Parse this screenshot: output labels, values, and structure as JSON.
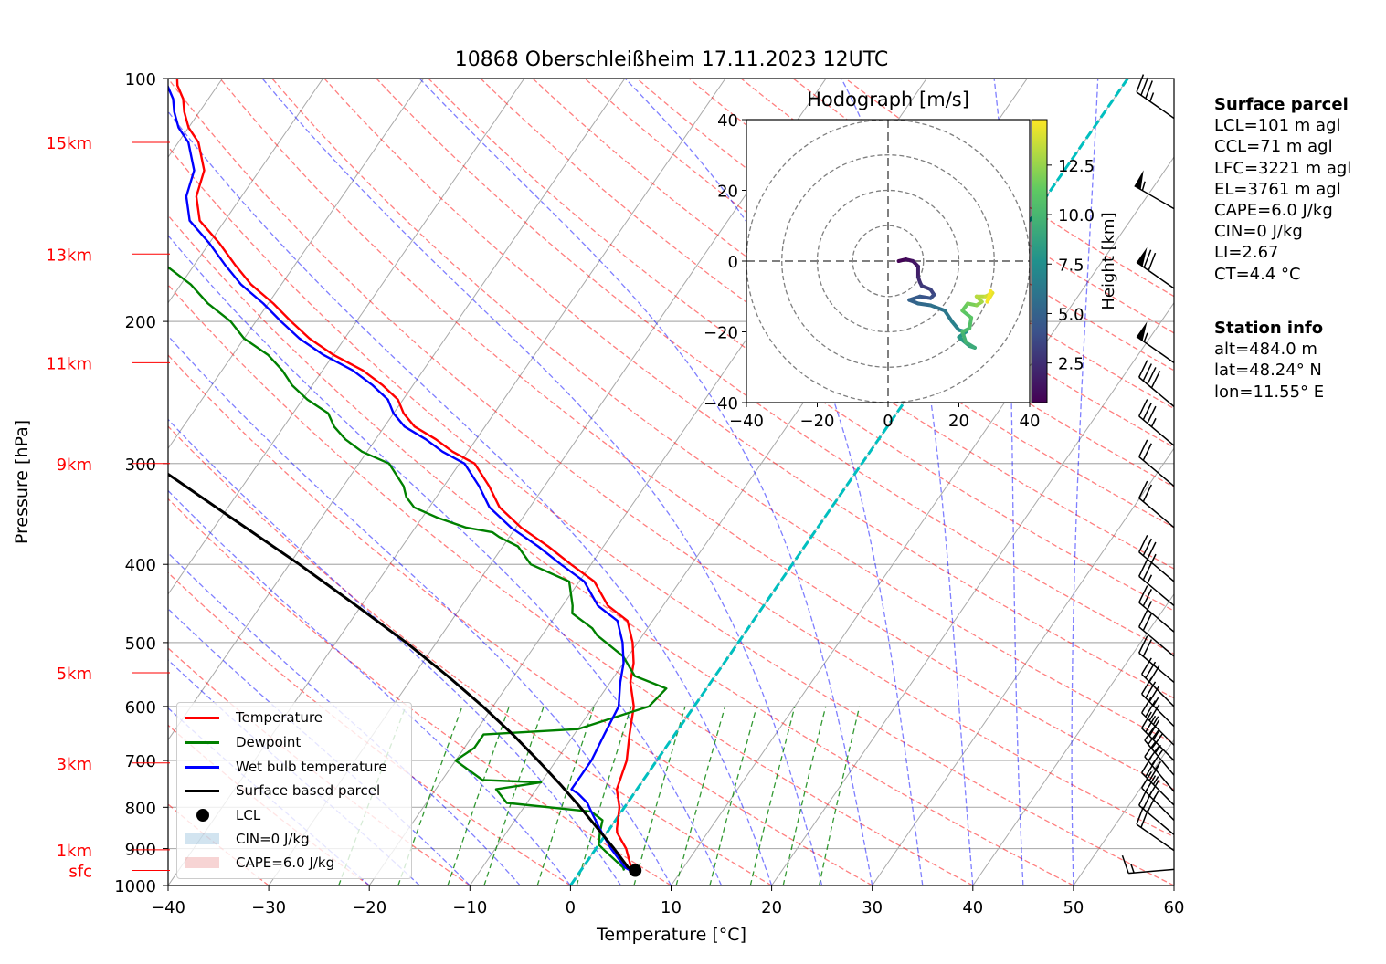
{
  "title": "10868 Oberschleißheim 17.11.2023 12UTC",
  "chart_data": [
    {
      "type": "line",
      "subtype": "skew-T log-p diagram",
      "title": "10868 Oberschleißheim 17.11.2023 12UTC",
      "xlabel": "Temperature [°C]",
      "ylabel": "Pressure [hPa]",
      "xlim": [
        -40,
        60
      ],
      "ylim": [
        1000,
        100
      ],
      "y_scale": "log",
      "grid": true,
      "x_ticks": [
        "−40",
        "−30",
        "−20",
        "−10",
        "0",
        "10",
        "20",
        "30",
        "40",
        "50",
        "60"
      ],
      "y_ticks": [
        "100",
        "200",
        "300",
        "400",
        "500",
        "600",
        "700",
        "800",
        "900",
        "1000"
      ],
      "height_labels": [
        {
          "label": "sfc",
          "pressure": 958
        },
        {
          "label": "1km",
          "pressure": 903
        },
        {
          "label": "3km",
          "pressure": 705
        },
        {
          "label": "5km",
          "pressure": 545
        },
        {
          "label": "9km",
          "pressure": 300
        },
        {
          "label": "11km",
          "pressure": 225
        },
        {
          "label": "13km",
          "pressure": 165
        },
        {
          "label": "15km",
          "pressure": 120
        }
      ],
      "legend_position": "bottom-left",
      "legend": [
        "Temperature",
        "Dewpoint",
        "Wet bulb temperature",
        "Surface based parcel",
        "LCL",
        "CIN=0 J/kg",
        "CAPE=6.0 J/kg"
      ],
      "colors": {
        "temperature": "#ff0000",
        "dewpoint": "#008000",
        "wetbulb": "#0000ff",
        "parcel": "#000000",
        "zero_isotherm": "#00bfbf",
        "dry_adiabats": "#ff0000",
        "moist_adiabats": "#0000ff",
        "mixing_ratio": "#008000"
      },
      "series": [
        {
          "name": "Temperature",
          "points": [
            [
              5.4,
              958
            ],
            [
              4.8,
              950
            ],
            [
              3.0,
              900
            ],
            [
              2.0,
              880
            ],
            [
              1.0,
              860
            ],
            [
              0.7,
              850
            ],
            [
              -0.5,
              800
            ],
            [
              -2.0,
              760
            ],
            [
              -3.0,
              700
            ],
            [
              -4.5,
              650
            ],
            [
              -6.0,
              600
            ],
            [
              -8.0,
              560
            ],
            [
              -9.0,
              530
            ],
            [
              -10.5,
              500
            ],
            [
              -12.5,
              470
            ],
            [
              -15.5,
              450
            ],
            [
              -18.5,
              420
            ],
            [
              -22.0,
              400
            ],
            [
              -25.5,
              380
            ],
            [
              -29.5,
              360
            ],
            [
              -33.0,
              340
            ],
            [
              -35.5,
              320
            ],
            [
              -38.5,
              300
            ],
            [
              -41.5,
              290
            ],
            [
              -44.0,
              280
            ],
            [
              -47.0,
              270
            ],
            [
              -49.0,
              260
            ],
            [
              -50.5,
              250
            ],
            [
              -53.0,
              240
            ],
            [
              -56.0,
              230
            ],
            [
              -60.0,
              220
            ],
            [
              -63.5,
              210
            ],
            [
              -66.5,
              200
            ],
            [
              -69.5,
              190
            ],
            [
              -73.0,
              180
            ],
            [
              -76.0,
              170
            ],
            [
              -79.0,
              160
            ],
            [
              -82.5,
              150
            ],
            [
              -84.5,
              140
            ],
            [
              -85.5,
              130
            ],
            [
              -88.0,
              120
            ],
            [
              -90.0,
              115
            ],
            [
              -91.5,
              110
            ],
            [
              -92.5,
              106
            ],
            [
              -94.0,
              102
            ],
            [
              -94.5,
              100
            ]
          ]
        },
        {
          "name": "Dewpoint",
          "points": [
            [
              4.3,
              958
            ],
            [
              4.0,
              950
            ],
            [
              1.0,
              905
            ],
            [
              0.0,
              890
            ],
            [
              -0.7,
              860
            ],
            [
              -1.3,
              830
            ],
            [
              -3.0,
              810
            ],
            [
              -12.0,
              790
            ],
            [
              -14.0,
              760
            ],
            [
              -10.0,
              745
            ],
            [
              -16.0,
              740
            ],
            [
              -20.0,
              700
            ],
            [
              -19.0,
              675
            ],
            [
              -19.0,
              650
            ],
            [
              -10.0,
              640
            ],
            [
              -4.5,
              600
            ],
            [
              -4.0,
              570
            ],
            [
              -8.0,
              550
            ],
            [
              -10.5,
              520
            ],
            [
              -14.5,
              490
            ],
            [
              -15.5,
              480
            ],
            [
              -18.5,
              460
            ],
            [
              -19.0,
              450
            ],
            [
              -21.0,
              420
            ],
            [
              -26.0,
              400
            ],
            [
              -28.5,
              380
            ],
            [
              -31.0,
              370
            ],
            [
              -32.0,
              365
            ],
            [
              -35.0,
              360
            ],
            [
              -38.5,
              350
            ],
            [
              -41.5,
              340
            ],
            [
              -43.0,
              330
            ],
            [
              -44.0,
              320
            ],
            [
              -47.0,
              300
            ],
            [
              -50.5,
              290
            ],
            [
              -53.0,
              280
            ],
            [
              -55.0,
              270
            ],
            [
              -56.5,
              260
            ],
            [
              -59.5,
              250
            ],
            [
              -62.0,
              240
            ],
            [
              -64.0,
              230
            ],
            [
              -66.5,
              220
            ],
            [
              -70.0,
              210
            ],
            [
              -72.5,
              200
            ],
            [
              -76.0,
              190
            ],
            [
              -79.0,
              180
            ],
            [
              -83.0,
              170
            ],
            [
              -87.0,
              160
            ],
            [
              -90.0,
              150
            ],
            [
              -93.0,
              140
            ],
            [
              -96.0,
              130
            ],
            [
              -98.0,
              120
            ],
            [
              -99.0,
              115
            ],
            [
              -100.0,
              110
            ],
            [
              -100.5,
              106
            ],
            [
              -101.0,
              102
            ]
          ]
        },
        {
          "name": "Wet bulb temperature",
          "points": [
            [
              4.9,
              958
            ],
            [
              4.2,
              950
            ],
            [
              1.5,
              900
            ],
            [
              0.5,
              880
            ],
            [
              -0.5,
              860
            ],
            [
              -1.0,
              850
            ],
            [
              -3.0,
              810
            ],
            [
              -4.0,
              790
            ],
            [
              -5.5,
              770
            ],
            [
              -6.5,
              760
            ],
            [
              -6.5,
              700
            ],
            [
              -7.0,
              650
            ],
            [
              -7.5,
              600
            ],
            [
              -9.0,
              560
            ],
            [
              -10.0,
              530
            ],
            [
              -11.5,
              500
            ],
            [
              -13.5,
              470
            ],
            [
              -16.5,
              450
            ],
            [
              -19.5,
              420
            ],
            [
              -23.0,
              400
            ],
            [
              -26.5,
              380
            ],
            [
              -30.5,
              360
            ],
            [
              -34.0,
              340
            ],
            [
              -36.5,
              320
            ],
            [
              -39.5,
              300
            ],
            [
              -42.5,
              290
            ],
            [
              -45.0,
              280
            ],
            [
              -48.0,
              270
            ],
            [
              -50.0,
              260
            ],
            [
              -51.5,
              250
            ],
            [
              -54.0,
              240
            ],
            [
              -57.0,
              230
            ],
            [
              -61.0,
              220
            ],
            [
              -64.5,
              210
            ],
            [
              -67.5,
              200
            ],
            [
              -70.5,
              190
            ],
            [
              -74.0,
              180
            ],
            [
              -77.0,
              170
            ],
            [
              -80.0,
              160
            ],
            [
              -83.5,
              150
            ],
            [
              -85.5,
              140
            ],
            [
              -86.5,
              130
            ],
            [
              -89.0,
              120
            ],
            [
              -91.0,
              115
            ],
            [
              -92.5,
              110
            ],
            [
              -93.5,
              106
            ],
            [
              -95.0,
              102
            ],
            [
              -95.5,
              100
            ]
          ]
        },
        {
          "name": "Surface based parcel",
          "points": [
            [
              5.4,
              958
            ],
            [
              4.5,
              950
            ],
            [
              1.8,
              900
            ],
            [
              -1.2,
              850
            ],
            [
              -4.4,
              800
            ],
            [
              -7.9,
              750
            ],
            [
              -11.8,
              700
            ],
            [
              -16.1,
              650
            ],
            [
              -21.0,
              600
            ],
            [
              -26.6,
              550
            ],
            [
              -33.0,
              500
            ],
            [
              -40.5,
              450
            ],
            [
              -49.0,
              400
            ],
            [
              -59.0,
              350
            ],
            [
              -70.5,
              300
            ],
            [
              -84.0,
              250
            ],
            [
              -100.0,
              200
            ]
          ]
        }
      ],
      "lcl": {
        "temperature": 5.4,
        "pressure": 958
      },
      "wind_barbs": [
        {
          "pressure": 955,
          "speed_kt": 15,
          "direction_deg": 265
        },
        {
          "pressure": 905,
          "speed_kt": 20,
          "direction_deg": 305
        },
        {
          "pressure": 865,
          "speed_kt": 30,
          "direction_deg": 310
        },
        {
          "pressure": 830,
          "speed_kt": 35,
          "direction_deg": 315
        },
        {
          "pressure": 795,
          "speed_kt": 35,
          "direction_deg": 315
        },
        {
          "pressure": 765,
          "speed_kt": 35,
          "direction_deg": 320
        },
        {
          "pressure": 730,
          "speed_kt": 35,
          "direction_deg": 320
        },
        {
          "pressure": 700,
          "speed_kt": 35,
          "direction_deg": 315
        },
        {
          "pressure": 670,
          "speed_kt": 35,
          "direction_deg": 315
        },
        {
          "pressure": 635,
          "speed_kt": 35,
          "direction_deg": 315
        },
        {
          "pressure": 600,
          "speed_kt": 30,
          "direction_deg": 315
        },
        {
          "pressure": 560,
          "speed_kt": 20,
          "direction_deg": 310
        },
        {
          "pressure": 520,
          "speed_kt": 20,
          "direction_deg": 310
        },
        {
          "pressure": 485,
          "speed_kt": 25,
          "direction_deg": 310
        },
        {
          "pressure": 450,
          "speed_kt": 25,
          "direction_deg": 310
        },
        {
          "pressure": 420,
          "speed_kt": 35,
          "direction_deg": 310
        },
        {
          "pressure": 360,
          "speed_kt": 20,
          "direction_deg": 310
        },
        {
          "pressure": 320,
          "speed_kt": 20,
          "direction_deg": 310
        },
        {
          "pressure": 285,
          "speed_kt": 35,
          "direction_deg": 310
        },
        {
          "pressure": 255,
          "speed_kt": 40,
          "direction_deg": 310
        },
        {
          "pressure": 225,
          "speed_kt": 55,
          "direction_deg": 305
        },
        {
          "pressure": 182,
          "speed_kt": 70,
          "direction_deg": 305
        },
        {
          "pressure": 145,
          "speed_kt": 55,
          "direction_deg": 300
        },
        {
          "pressure": 112,
          "speed_kt": 35,
          "direction_deg": 305
        }
      ]
    },
    {
      "type": "line",
      "subtype": "hodograph",
      "title": "Hodograph [m/s]",
      "xlim": [
        -40,
        40
      ],
      "ylim": [
        -40,
        40
      ],
      "x_ticks": [
        "−40",
        "−20",
        "0",
        "20",
        "40"
      ],
      "y_ticks": [
        "−40",
        "−20",
        "0",
        "20",
        "40"
      ],
      "rings": [
        10,
        20,
        30,
        40
      ],
      "colorbar": {
        "label": "Height [km]",
        "ticks": [
          "2.5",
          "5.0",
          "7.5",
          "10.0",
          "12.5"
        ],
        "range": [
          0.5,
          14.8
        ],
        "colormap": "viridis"
      },
      "points": [
        [
          3.0,
          0.0,
          0.5
        ],
        [
          5.0,
          0.5,
          0.8
        ],
        [
          7.0,
          0.0,
          1.2
        ],
        [
          8.5,
          -1.5,
          1.6
        ],
        [
          8.5,
          -4.5,
          2.0
        ],
        [
          9.0,
          -6.0,
          2.4
        ],
        [
          9.5,
          -7.0,
          2.8
        ],
        [
          12.0,
          -8.0,
          3.2
        ],
        [
          13.0,
          -9.5,
          3.6
        ],
        [
          12.0,
          -10.5,
          4.0
        ],
        [
          9.0,
          -10.0,
          4.4
        ],
        [
          6.0,
          -11.0,
          4.8
        ],
        [
          8.5,
          -12.0,
          5.2
        ],
        [
          12.0,
          -12.5,
          5.6
        ],
        [
          16.0,
          -14.0,
          6.0
        ],
        [
          18.0,
          -17.0,
          6.5
        ],
        [
          20.0,
          -19.5,
          7.0
        ],
        [
          22.0,
          -20.0,
          7.5
        ],
        [
          20.0,
          -21.5,
          8.0
        ],
        [
          23.0,
          -24.0,
          8.5
        ],
        [
          24.5,
          -24.5,
          9.0
        ],
        [
          22.0,
          -23.0,
          9.5
        ],
        [
          21.0,
          -20.0,
          10.0
        ],
        [
          23.0,
          -19.0,
          10.4
        ],
        [
          23.5,
          -16.0,
          10.8
        ],
        [
          21.0,
          -14.0,
          11.2
        ],
        [
          22.5,
          -12.0,
          11.6
        ],
        [
          25.0,
          -12.5,
          12.0
        ],
        [
          26.5,
          -11.5,
          12.5
        ],
        [
          25.0,
          -10.0,
          13.0
        ],
        [
          27.5,
          -10.0,
          13.5
        ],
        [
          29.5,
          -9.0,
          14.0
        ],
        [
          28.0,
          -11.5,
          14.5
        ],
        [
          29.0,
          -8.5,
          14.8
        ]
      ]
    }
  ],
  "info": {
    "surface_heading": "Surface parcel",
    "surface_lines": [
      "LCL=101 m agl",
      "CCL=71 m agl",
      "LFC=3221 m agl",
      "EL=3761 m agl",
      "CAPE=6.0 J/kg",
      "CIN=0 J/kg",
      "LI=2.67",
      "CT=4.4 °C"
    ],
    "station_heading": "Station info",
    "station_lines": [
      "alt=484.0 m",
      "lat=48.24° N",
      "lon=11.55° E"
    ]
  },
  "legend": {
    "temperature": "Temperature",
    "dewpoint": "Dewpoint",
    "wetbulb": "Wet bulb temperature",
    "parcel": "Surface based parcel",
    "lcl": "LCL",
    "cin": "CIN=0 J/kg",
    "cape": "CAPE=6.0 J/kg"
  }
}
